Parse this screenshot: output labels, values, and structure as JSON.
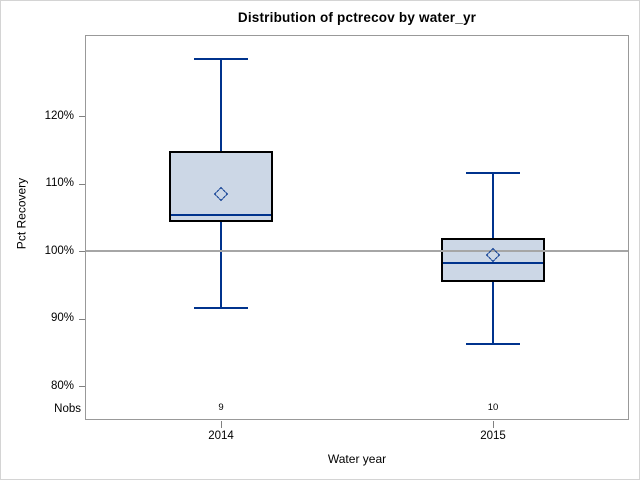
{
  "chart_data": {
    "type": "boxplot",
    "title": "Distribution of pctrecov by water_yr",
    "xlabel": "Water year",
    "ylabel": "Pct Recovery",
    "nobs_label": "Nobs",
    "categories": [
      "2014",
      "2015"
    ],
    "ylim": [
      75,
      132
    ],
    "y_ticks": [
      {
        "value": 80,
        "label": "80%"
      },
      {
        "value": 90,
        "label": "90%"
      },
      {
        "value": 100,
        "label": "100%"
      },
      {
        "value": 110,
        "label": "110%"
      },
      {
        "value": 120,
        "label": "120%"
      }
    ],
    "reference_line_y": 100,
    "grid": "off",
    "legend": "none",
    "series": [
      {
        "category": "2014",
        "nobs": "9",
        "whisker_low": 91.6,
        "q1": 104.3,
        "median": 105.4,
        "q3": 114.8,
        "whisker_high": 128.4,
        "mean": 108.4
      },
      {
        "category": "2015",
        "nobs": "10",
        "whisker_low": 86.2,
        "q1": 95.5,
        "median": 98.2,
        "q3": 101.9,
        "whisker_high": 111.5,
        "mean": 99.4
      }
    ],
    "colors": {
      "box_fill": "#ccd7e6",
      "box_border": "#000000",
      "whisker": "#00338d",
      "median": "#00338d",
      "mean_marker": "#00338d",
      "reference_line": "#a6a6a6",
      "axis_frame": "#999999",
      "tick": "#808080",
      "text": "#000000"
    }
  }
}
